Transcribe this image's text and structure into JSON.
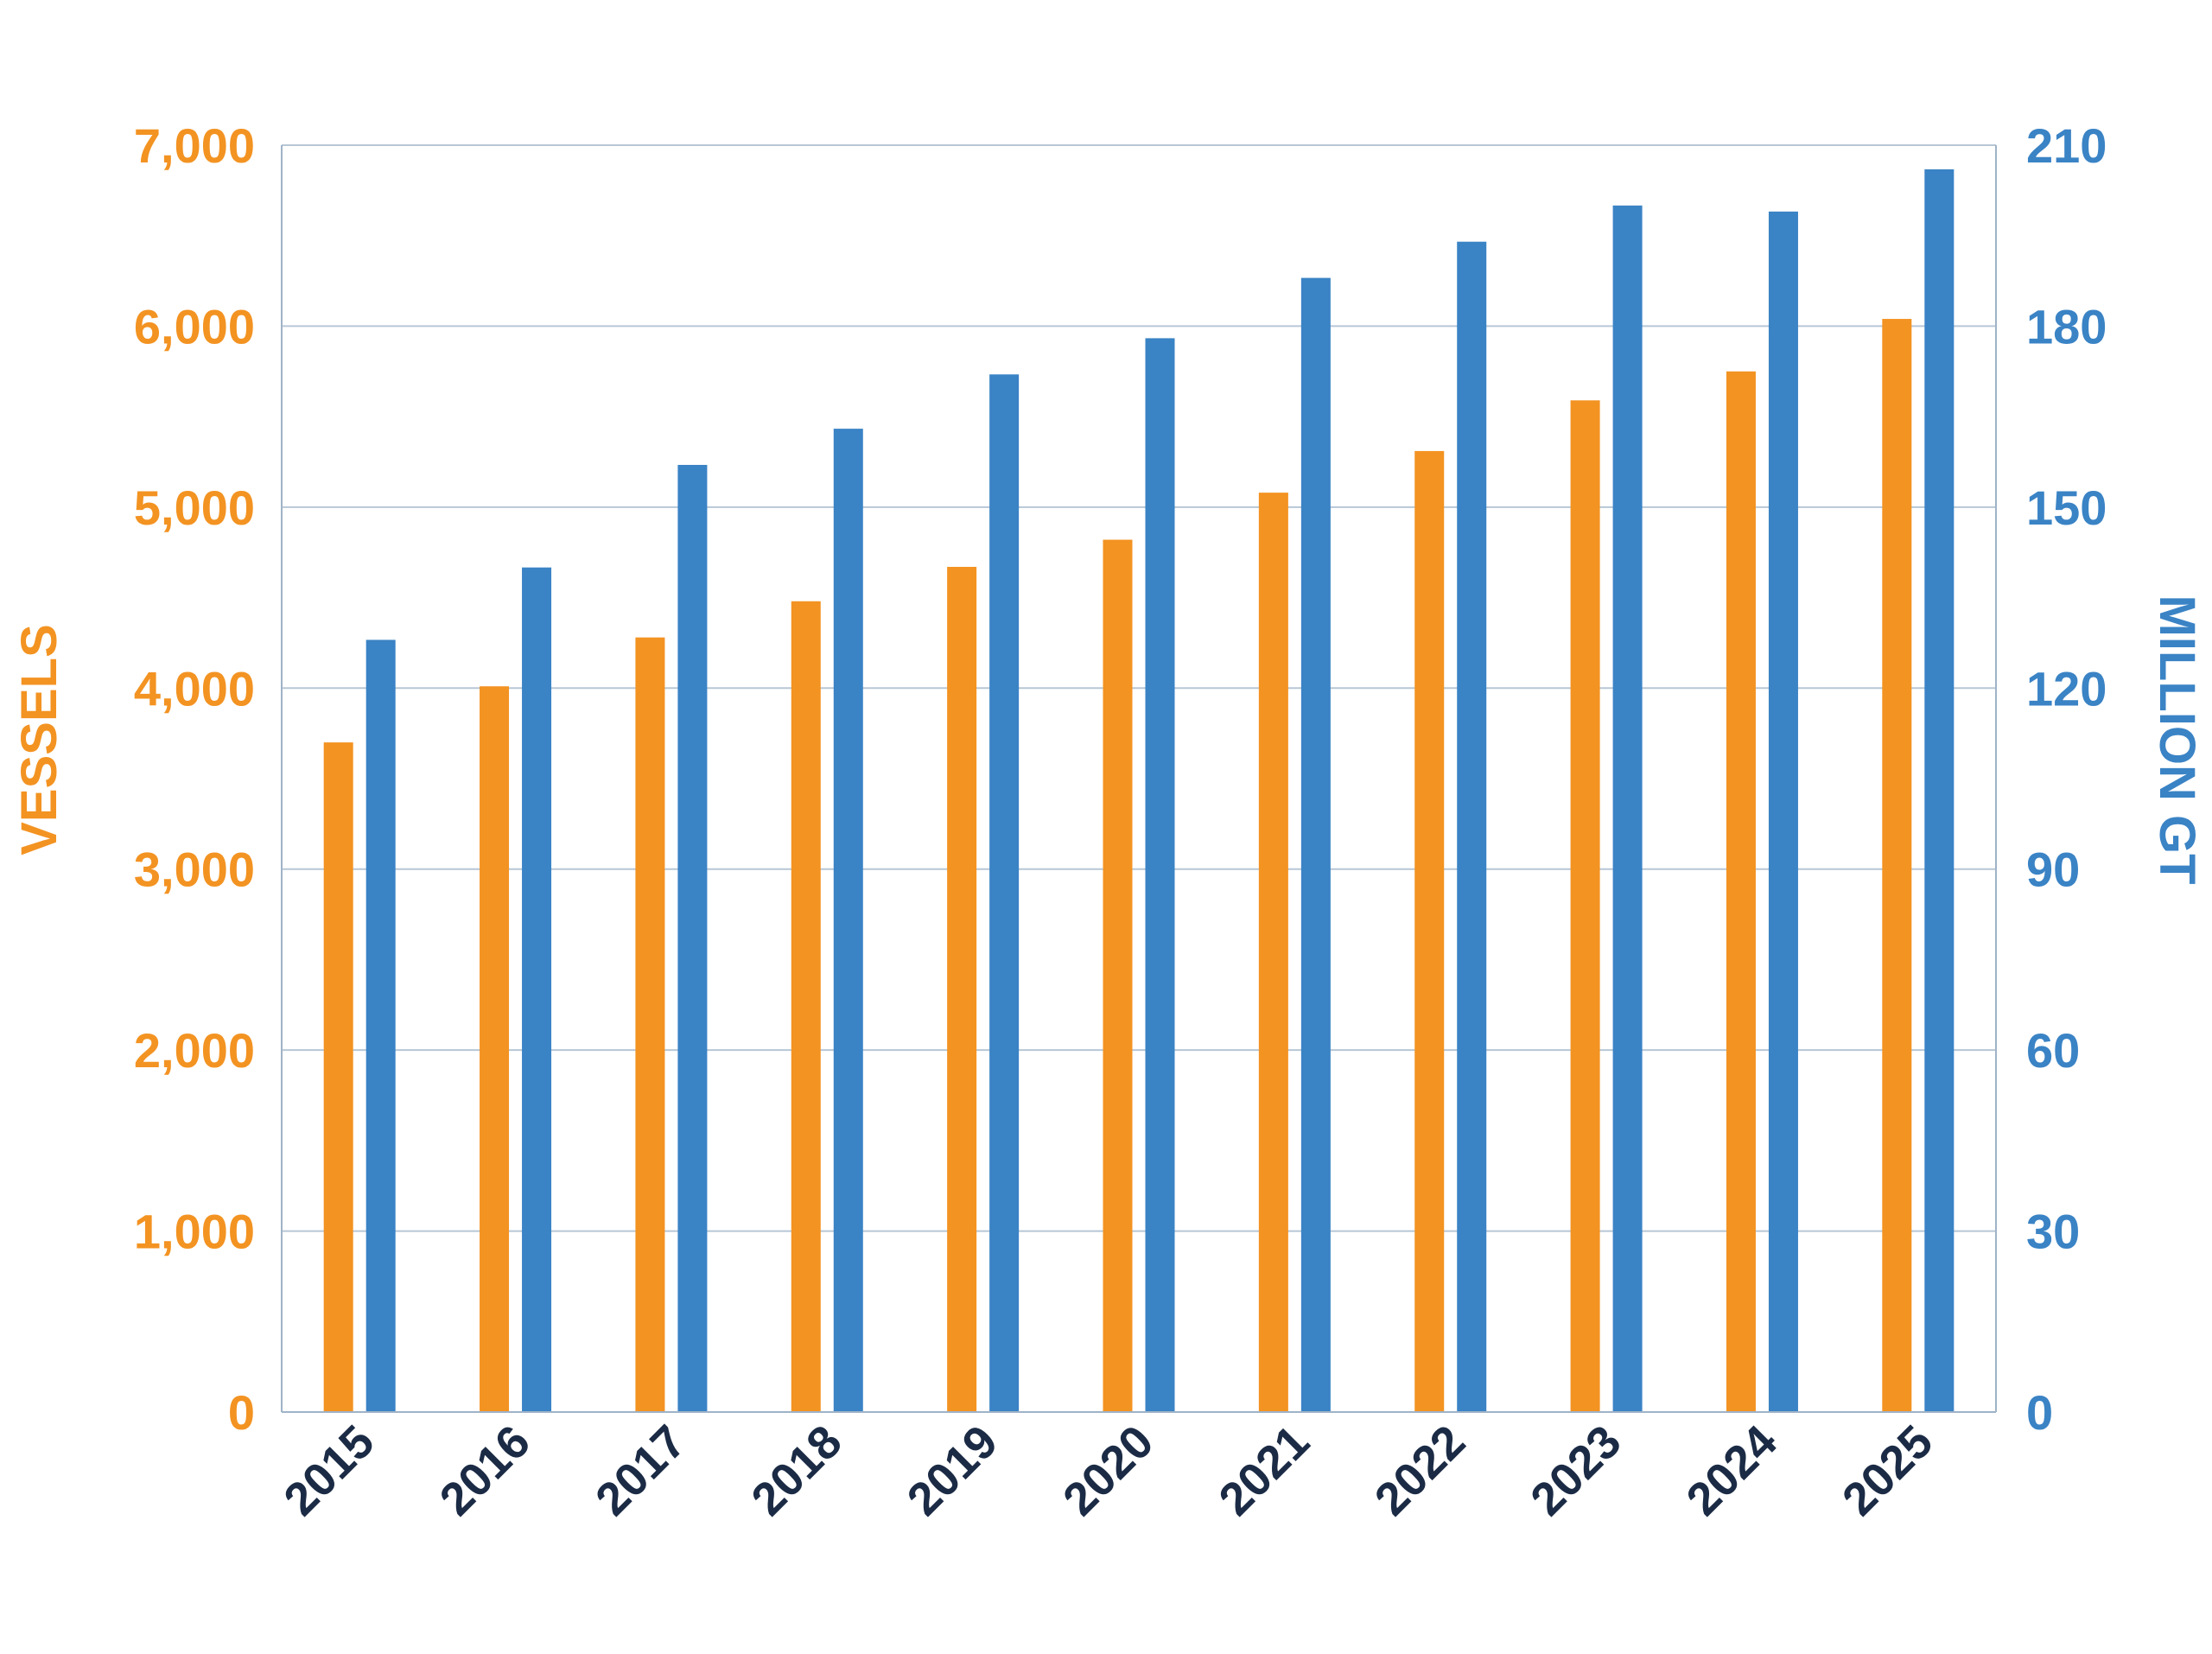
{
  "colors": {
    "vessels": "#F39322",
    "gt": "#3A83C5",
    "x_tick": "#1B2B45",
    "grid": "#B7C7D6",
    "axis": "#9FB3C7"
  },
  "chart_data": {
    "type": "bar",
    "title": "",
    "xlabel": "",
    "ylabel": "VESSELS",
    "y2label": "MILLION GT",
    "ylim": [
      0,
      7000
    ],
    "y2lim": [
      0,
      210
    ],
    "yticks": [
      "0",
      "1,000",
      "2,000",
      "3,000",
      "4,000",
      "5,000",
      "6,000",
      "7,000"
    ],
    "y2ticks": [
      "0",
      "30",
      "60",
      "90",
      "120",
      "150",
      "180",
      "210"
    ],
    "grid": true,
    "legend": "none",
    "categories": [
      "2015",
      "2016",
      "2017",
      "2018",
      "2019",
      "2020",
      "2021",
      "2022",
      "2023",
      "2024",
      "2025"
    ],
    "series": [
      {
        "axis": "left",
        "color": "#F39322",
        "values": [
          3700,
          4010,
          4280,
          4480,
          4670,
          4820,
          5080,
          5310,
          5590,
          5750,
          6040
        ]
      },
      {
        "axis": "right",
        "color": "#3A83C5",
        "values": [
          128,
          140,
          157,
          163,
          172,
          178,
          188,
          194,
          200,
          199,
          206
        ]
      }
    ]
  }
}
